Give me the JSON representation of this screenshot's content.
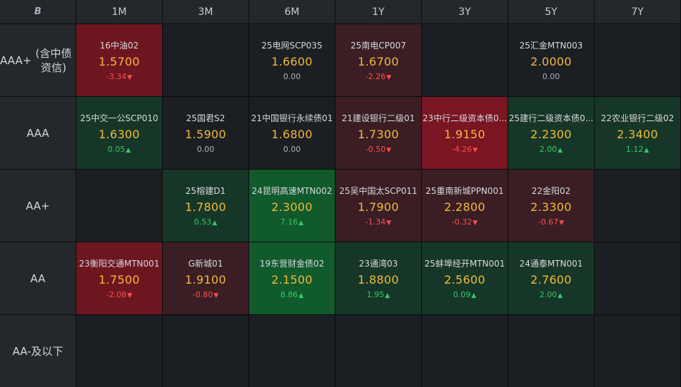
{
  "corner_logo": "B",
  "columns": [
    "1M",
    "3M",
    "6M",
    "1Y",
    "3Y",
    "5Y",
    "7Y"
  ],
  "rows": [
    {
      "label_line1": "AAA+",
      "label_line2": "(含中债资信)"
    },
    {
      "label_line1": "AAA",
      "label_line2": ""
    },
    {
      "label_line1": "AA+",
      "label_line2": ""
    },
    {
      "label_line1": "AA",
      "label_line2": ""
    },
    {
      "label_line1": "AA-及以下",
      "label_line2": ""
    }
  ],
  "colors": {
    "red_strong": "#6e1620",
    "red_bright": "#7a1522",
    "red_weak": "#3a1e24",
    "green_strong": "#115a2c",
    "green_weak": "#163727",
    "neutral": "#1b1e23",
    "yield_text": "#f2b93c",
    "up_text": "#35c96a",
    "down_text": "#ff4d4d"
  },
  "cells": [
    {
      "row": 0,
      "col": 0,
      "name": "16中油02",
      "yield": "1.5700",
      "change": "-3.34",
      "dir": "down",
      "tone": "red_strong"
    },
    {
      "row": 0,
      "col": 2,
      "name": "25电网SCP035",
      "yield": "1.6600",
      "change": "0.00",
      "dir": "flat",
      "tone": "neutral"
    },
    {
      "row": 0,
      "col": 3,
      "name": "25南电CP007",
      "yield": "1.6700",
      "change": "-2.26",
      "dir": "down",
      "tone": "red_weak"
    },
    {
      "row": 0,
      "col": 5,
      "name": "25汇金MTN003",
      "yield": "2.0000",
      "change": "0.00",
      "dir": "flat",
      "tone": "neutral"
    },
    {
      "row": 1,
      "col": 0,
      "name": "25中交一公SCP010",
      "yield": "1.6300",
      "change": "0.05",
      "dir": "up",
      "tone": "green_weak"
    },
    {
      "row": 1,
      "col": 1,
      "name": "25国君S2",
      "yield": "1.5900",
      "change": "0.00",
      "dir": "flat",
      "tone": "neutral"
    },
    {
      "row": 1,
      "col": 2,
      "name": "21中国银行永续债01",
      "yield": "1.6800",
      "change": "0.00",
      "dir": "flat",
      "tone": "neutral"
    },
    {
      "row": 1,
      "col": 3,
      "name": "21建设银行二级01",
      "yield": "1.7300",
      "change": "-0.50",
      "dir": "down",
      "tone": "red_weak"
    },
    {
      "row": 1,
      "col": 4,
      "name": "23中行二级资本债0...",
      "yield": "1.9150",
      "change": "-4.26",
      "dir": "down",
      "tone": "red_bright"
    },
    {
      "row": 1,
      "col": 5,
      "name": "25建行二级资本债0...",
      "yield": "2.2300",
      "change": "2.00",
      "dir": "up",
      "tone": "green_weak"
    },
    {
      "row": 1,
      "col": 6,
      "name": "22农业银行二级02",
      "yield": "2.3400",
      "change": "1.12",
      "dir": "up",
      "tone": "green_weak"
    },
    {
      "row": 2,
      "col": 1,
      "name": "25榕建D1",
      "yield": "1.7800",
      "change": "0.53",
      "dir": "up",
      "tone": "green_weak"
    },
    {
      "row": 2,
      "col": 2,
      "name": "24昆明高速MTN002",
      "yield": "2.3000",
      "change": "7.16",
      "dir": "up",
      "tone": "green_strong"
    },
    {
      "row": 2,
      "col": 3,
      "name": "25吴中国太SCP011",
      "yield": "1.7900",
      "change": "-1.34",
      "dir": "down",
      "tone": "red_weak"
    },
    {
      "row": 2,
      "col": 4,
      "name": "25重南新城PPN001",
      "yield": "2.2800",
      "change": "-0.32",
      "dir": "down",
      "tone": "red_weak"
    },
    {
      "row": 2,
      "col": 5,
      "name": "22金阳02",
      "yield": "2.3300",
      "change": "-0.67",
      "dir": "down",
      "tone": "red_weak"
    },
    {
      "row": 3,
      "col": 0,
      "name": "23衡阳交通MTN001",
      "yield": "1.7500",
      "change": "-2.08",
      "dir": "down",
      "tone": "red_strong"
    },
    {
      "row": 3,
      "col": 1,
      "name": "G新城01",
      "yield": "1.9100",
      "change": "-0.80",
      "dir": "down",
      "tone": "red_weak"
    },
    {
      "row": 3,
      "col": 2,
      "name": "19东营财金债02",
      "yield": "2.1500",
      "change": "8.86",
      "dir": "up",
      "tone": "green_strong"
    },
    {
      "row": 3,
      "col": 3,
      "name": "23通湾03",
      "yield": "1.8800",
      "change": "1.95",
      "dir": "up",
      "tone": "green_weak"
    },
    {
      "row": 3,
      "col": 4,
      "name": "25蚌埠经开MTN001",
      "yield": "2.5600",
      "change": "0.09",
      "dir": "up",
      "tone": "green_weak"
    },
    {
      "row": 3,
      "col": 5,
      "name": "24通泰MTN001",
      "yield": "2.7600",
      "change": "2.00",
      "dir": "up",
      "tone": "green_weak"
    }
  ]
}
